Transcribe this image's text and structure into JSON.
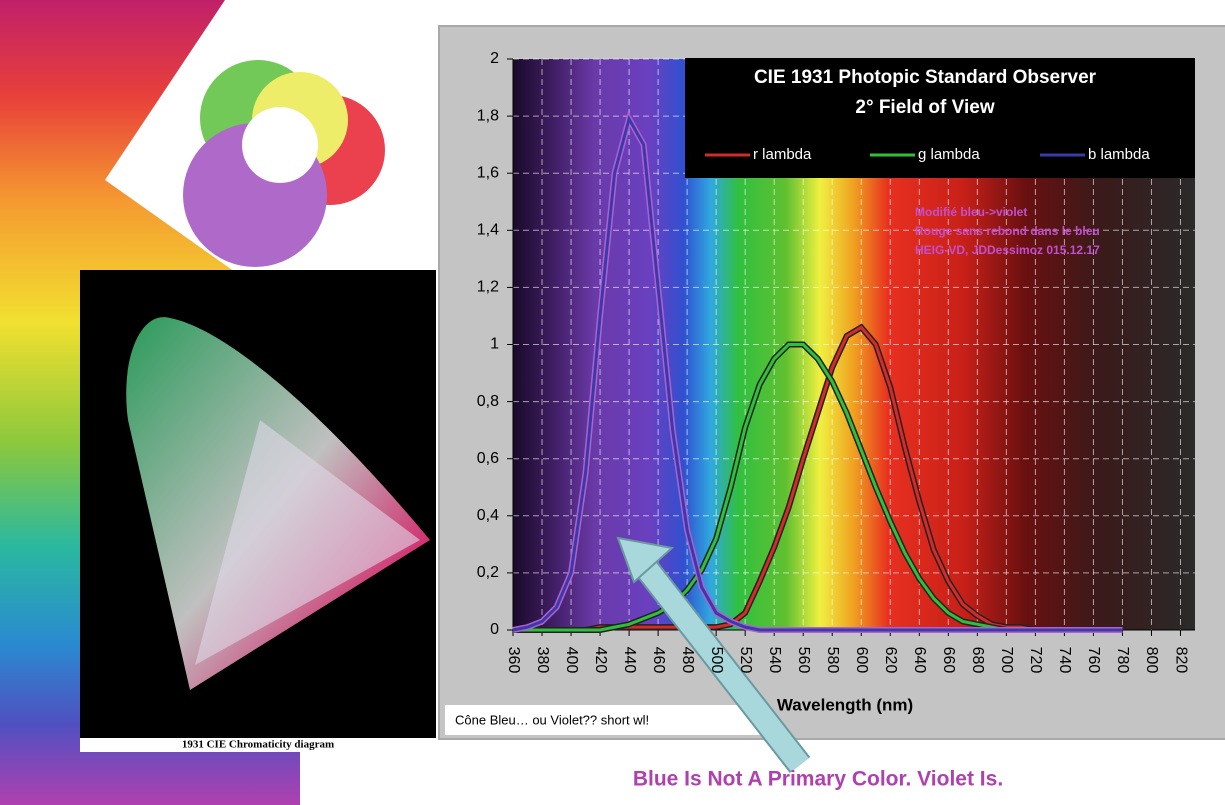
{
  "chart_data": {
    "type": "line",
    "title": "CIE 1931 Photopic Standard Observer",
    "subtitle": "2° Field of View",
    "annotations": [
      "Modifié bleu->violet",
      "Rouge sans rebond dans le bleu",
      "HEIG-VD, JDDessimoz 015.12.17"
    ],
    "x_label": "Wavelength (nm)",
    "x": [
      360,
      370,
      380,
      390,
      400,
      410,
      420,
      430,
      440,
      450,
      460,
      470,
      480,
      490,
      500,
      510,
      520,
      530,
      540,
      550,
      560,
      570,
      580,
      590,
      600,
      610,
      620,
      630,
      640,
      650,
      660,
      670,
      680,
      690,
      700,
      710,
      720,
      730,
      740,
      750,
      760,
      770,
      780
    ],
    "series": [
      {
        "name": "r lambda",
        "color": "#d42a2a",
        "values": [
          0,
          0,
          0,
          0,
          0,
          0,
          0.01,
          0.01,
          0.01,
          0.01,
          0.01,
          0.01,
          0.01,
          0.01,
          0.01,
          0.02,
          0.06,
          0.17,
          0.29,
          0.43,
          0.6,
          0.76,
          0.92,
          1.03,
          1.06,
          1.0,
          0.85,
          0.64,
          0.45,
          0.28,
          0.17,
          0.09,
          0.05,
          0.02,
          0.01,
          0.01,
          0,
          0,
          0,
          0,
          0,
          0,
          0
        ]
      },
      {
        "name": "g lambda",
        "color": "#2fbf3a",
        "values": [
          0,
          0,
          0,
          0,
          0,
          0,
          0,
          0.01,
          0.02,
          0.04,
          0.06,
          0.09,
          0.14,
          0.21,
          0.32,
          0.5,
          0.71,
          0.86,
          0.95,
          1.0,
          1.0,
          0.95,
          0.87,
          0.76,
          0.63,
          0.5,
          0.38,
          0.27,
          0.18,
          0.11,
          0.06,
          0.03,
          0.02,
          0.01,
          0,
          0,
          0,
          0,
          0,
          0,
          0,
          0,
          0
        ]
      },
      {
        "name": "b lambda",
        "color": "#3a3aa8",
        "values": [
          0,
          0.01,
          0.03,
          0.08,
          0.2,
          0.55,
          1.1,
          1.6,
          1.79,
          1.7,
          1.2,
          0.7,
          0.35,
          0.15,
          0.06,
          0.03,
          0.01,
          0,
          0,
          0,
          0,
          0,
          0,
          0,
          0,
          0,
          0,
          0,
          0,
          0,
          0,
          0,
          0,
          0,
          0,
          0,
          0,
          0,
          0,
          0,
          0,
          0,
          0
        ]
      }
    ],
    "xlim": [
      360,
      830
    ],
    "xticks": [
      360,
      380,
      400,
      420,
      440,
      460,
      480,
      500,
      520,
      540,
      560,
      580,
      600,
      620,
      640,
      660,
      680,
      700,
      720,
      740,
      760,
      780,
      800,
      820
    ],
    "ylim": [
      0,
      2
    ],
    "yticks": [
      0,
      {
        "value": 0.2,
        "label": "0,2"
      },
      {
        "value": 0.4,
        "label": "0,4"
      },
      {
        "value": 0.6,
        "label": "0,6"
      },
      {
        "value": 0.8,
        "label": "0,8"
      },
      1,
      {
        "value": 1.2,
        "label": "1,2"
      },
      {
        "value": 1.4,
        "label": "1,4"
      },
      {
        "value": 1.6,
        "label": "1,6"
      },
      {
        "value": 1.8,
        "label": "1,8"
      },
      2
    ],
    "grid": true
  },
  "note_box": "Cône Bleu… ou Violet?? short wl!",
  "inset_caption": "1931 CIE Chromaticity diagram",
  "caption": "Blue Is Not A Primary Color.  Violet Is."
}
